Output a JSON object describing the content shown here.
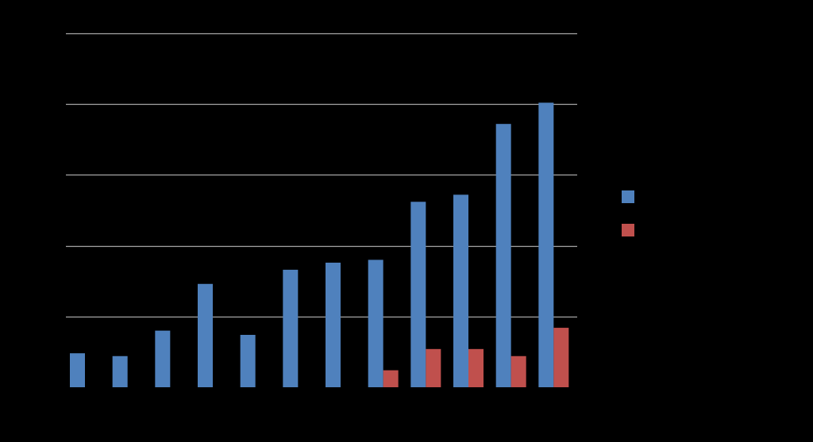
{
  "chart_data": {
    "type": "bar",
    "categories": [
      "",
      "",
      "",
      "",
      "",
      "",
      "",
      "",
      "",
      "",
      "",
      ""
    ],
    "series": [
      {
        "values": [
          24,
          22,
          40,
          73,
          37,
          83,
          88,
          90,
          131,
          136,
          186,
          201
        ],
        "color": "#4F81BD"
      },
      {
        "values": [
          0,
          0,
          0,
          0,
          0,
          0,
          0,
          12,
          27,
          27,
          22,
          42
        ],
        "color": "#C0504D"
      }
    ],
    "ylim": [
      0,
      250
    ],
    "y_gridlines": [
      50,
      100,
      150,
      200,
      250
    ],
    "grid": true,
    "gridline_color": "#A6A6A6",
    "background_color": "#000000",
    "legend_position": "right",
    "title": "",
    "xlabel": "",
    "ylabel": ""
  }
}
